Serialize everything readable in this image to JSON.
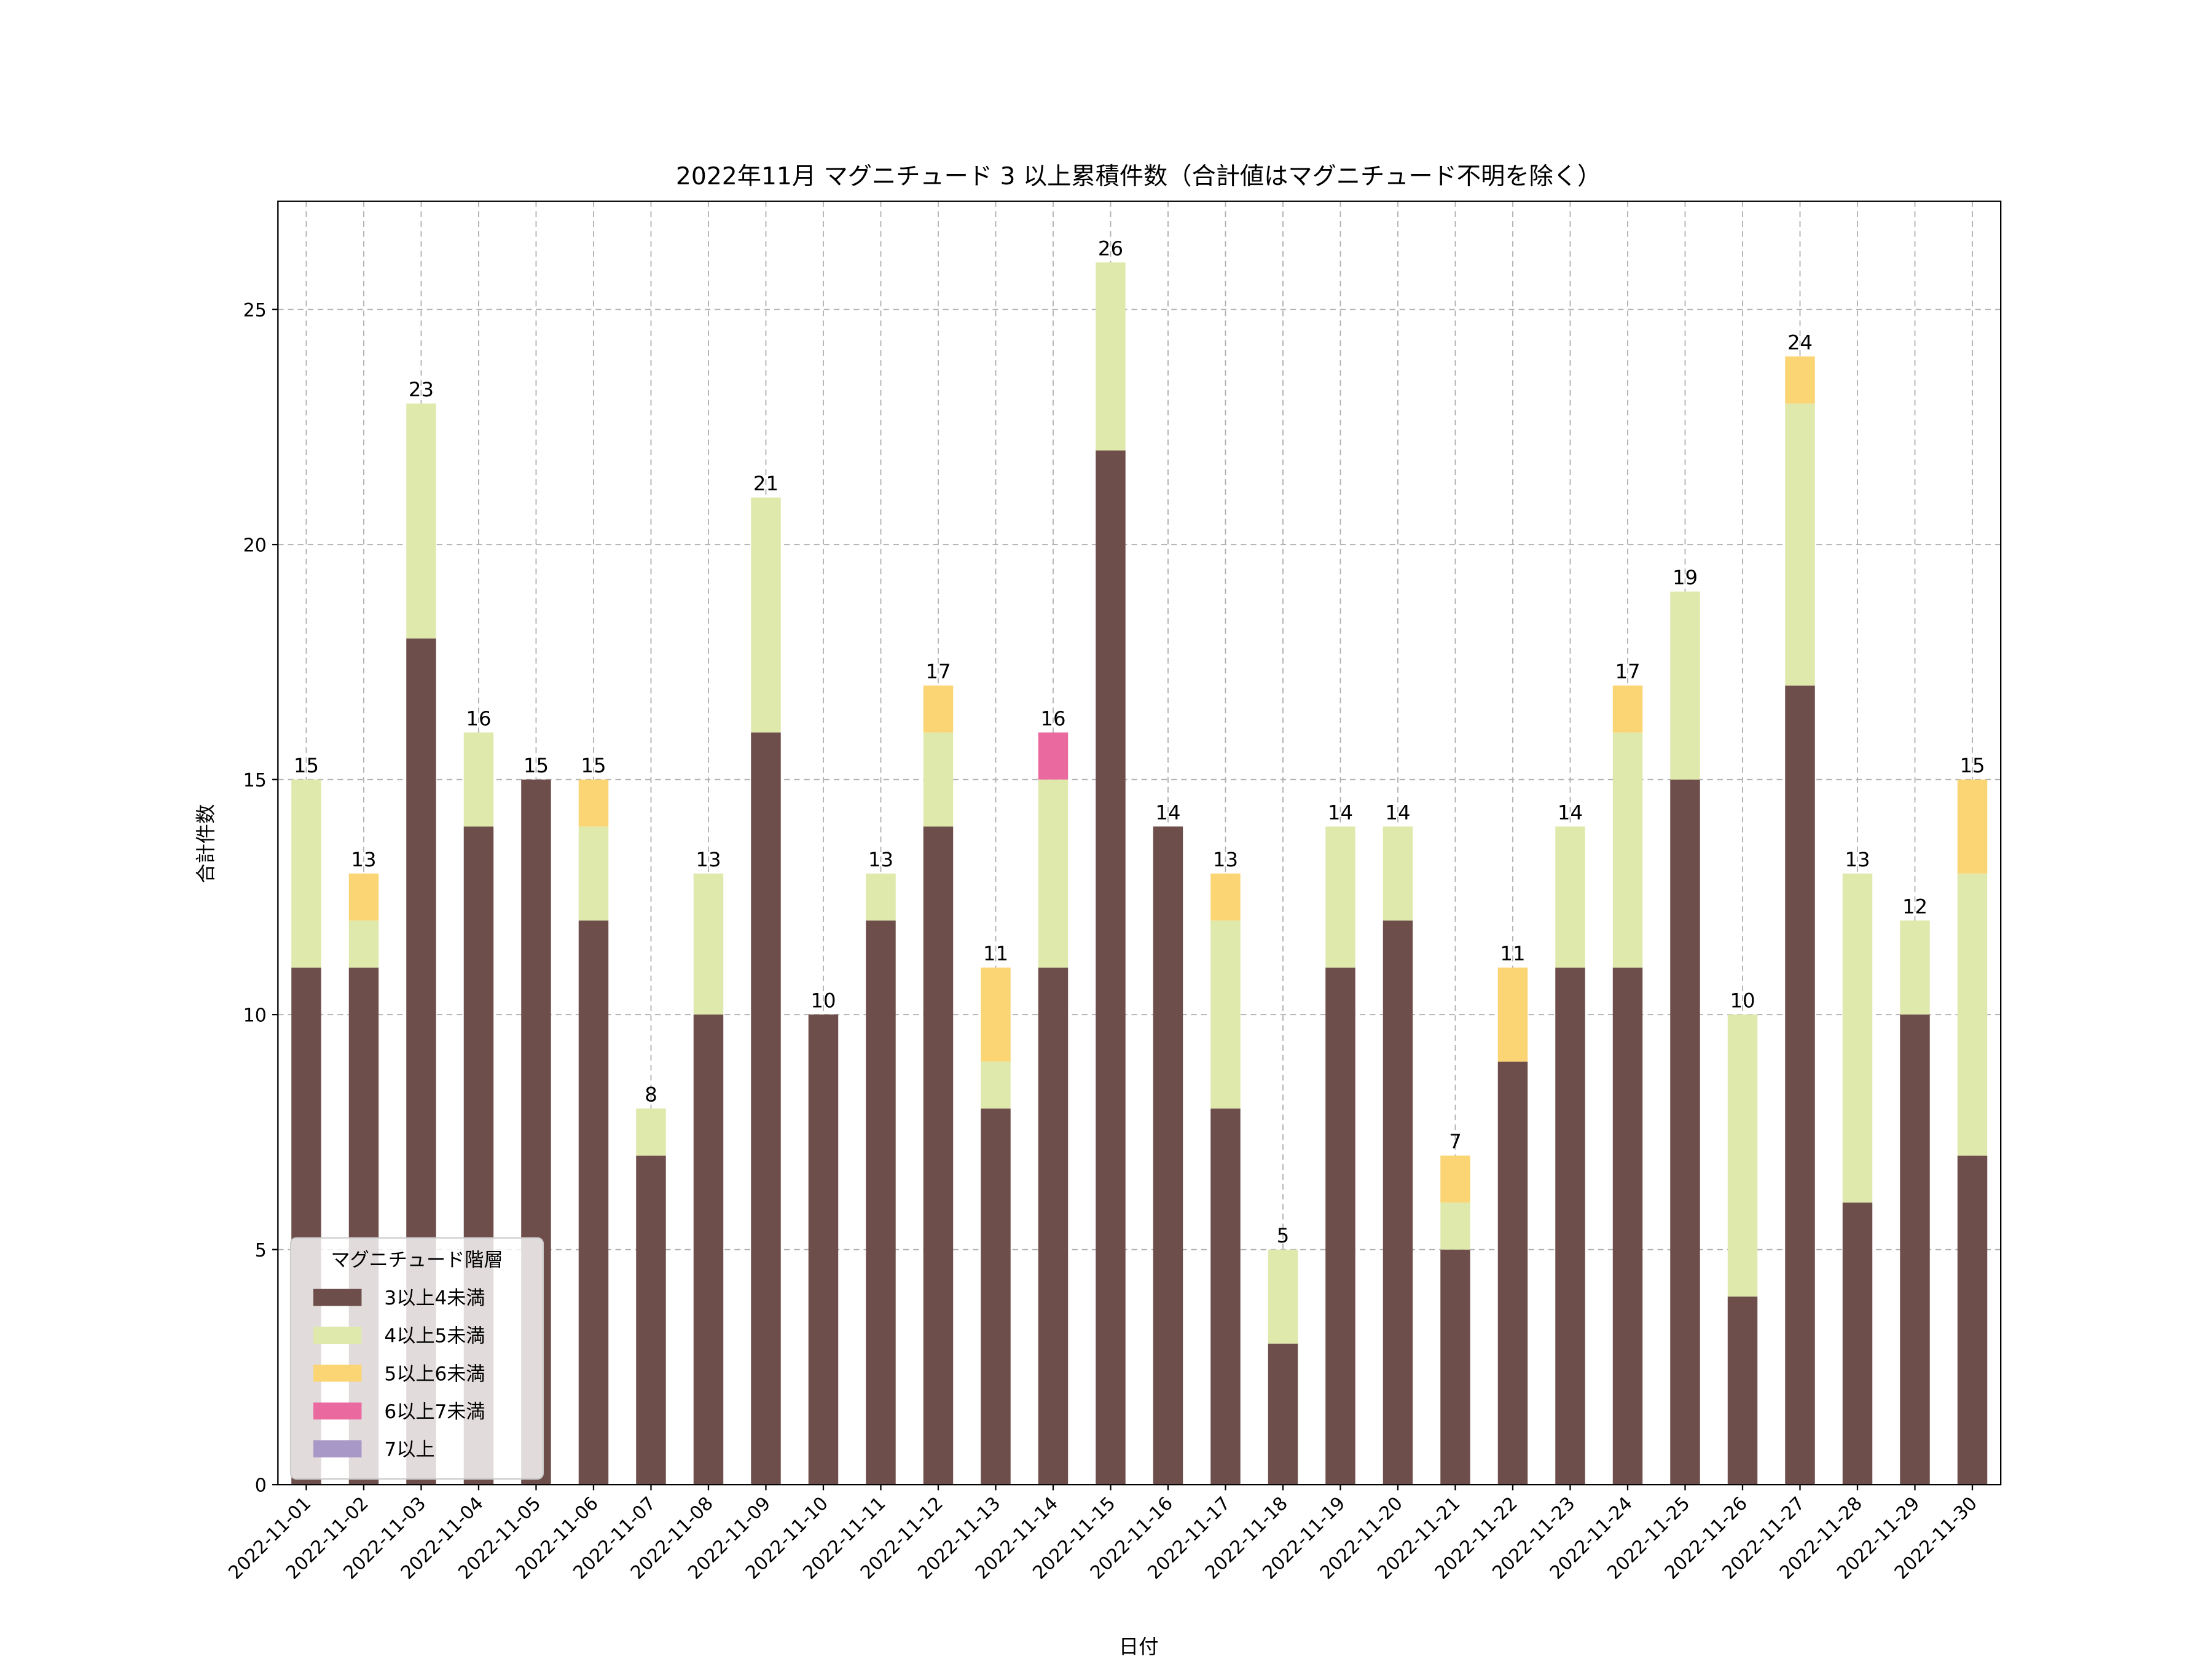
{
  "chart_data": {
    "type": "bar",
    "stacked": true,
    "title": "2022年11月 マグニチュード 3 以上累積件数（合計値はマグニチュード不明を除く）",
    "xlabel": "日付",
    "ylabel": "合計件数",
    "ylim": [
      0,
      27.3
    ],
    "yticks": [
      0,
      5,
      10,
      15,
      20,
      25
    ],
    "grid": true,
    "legend": {
      "title": "マグニチュード階層",
      "placement": "lower-left"
    },
    "categories": [
      "2022-11-01",
      "2022-11-02",
      "2022-11-03",
      "2022-11-04",
      "2022-11-05",
      "2022-11-06",
      "2022-11-07",
      "2022-11-08",
      "2022-11-09",
      "2022-11-10",
      "2022-11-11",
      "2022-11-12",
      "2022-11-13",
      "2022-11-14",
      "2022-11-15",
      "2022-11-16",
      "2022-11-17",
      "2022-11-18",
      "2022-11-19",
      "2022-11-20",
      "2022-11-21",
      "2022-11-22",
      "2022-11-23",
      "2022-11-24",
      "2022-11-25",
      "2022-11-26",
      "2022-11-27",
      "2022-11-28",
      "2022-11-29",
      "2022-11-30"
    ],
    "series": [
      {
        "name": "3以上4未満",
        "color": "#6d4e4a",
        "values": [
          11,
          11,
          18,
          14,
          15,
          12,
          7,
          10,
          16,
          10,
          12,
          14,
          8,
          11,
          22,
          14,
          8,
          3,
          11,
          12,
          5,
          9,
          11,
          11,
          15,
          4,
          17,
          6,
          10,
          7
        ]
      },
      {
        "name": "4以上5未満",
        "color": "#dfe9ac",
        "values": [
          4,
          1,
          5,
          2,
          0,
          2,
          1,
          3,
          5,
          0,
          1,
          2,
          1,
          4,
          4,
          0,
          4,
          2,
          3,
          2,
          1,
          0,
          3,
          5,
          4,
          6,
          6,
          7,
          2,
          6
        ]
      },
      {
        "name": "5以上6未満",
        "color": "#fbd573",
        "values": [
          0,
          1,
          0,
          0,
          0,
          1,
          0,
          0,
          0,
          0,
          0,
          1,
          2,
          0,
          0,
          0,
          1,
          0,
          0,
          0,
          1,
          2,
          0,
          1,
          0,
          0,
          1,
          0,
          0,
          2
        ]
      },
      {
        "name": "6以上7未満",
        "color": "#ea6aa0",
        "values": [
          0,
          0,
          0,
          0,
          0,
          0,
          0,
          0,
          0,
          0,
          0,
          0,
          0,
          1,
          0,
          0,
          0,
          0,
          0,
          0,
          0,
          0,
          0,
          0,
          0,
          0,
          0,
          0,
          0,
          0
        ]
      },
      {
        "name": "7以上",
        "color": "#a798c8",
        "values": [
          0,
          0,
          0,
          0,
          0,
          0,
          0,
          0,
          0,
          0,
          0,
          0,
          0,
          0,
          0,
          0,
          0,
          0,
          0,
          0,
          0,
          0,
          0,
          0,
          0,
          0,
          0,
          0,
          0,
          0
        ]
      }
    ],
    "totals": [
      15,
      13,
      23,
      16,
      15,
      15,
      8,
      13,
      21,
      10,
      13,
      17,
      11,
      16,
      26,
      14,
      13,
      5,
      14,
      14,
      7,
      11,
      14,
      17,
      19,
      10,
      24,
      13,
      12,
      15
    ]
  }
}
